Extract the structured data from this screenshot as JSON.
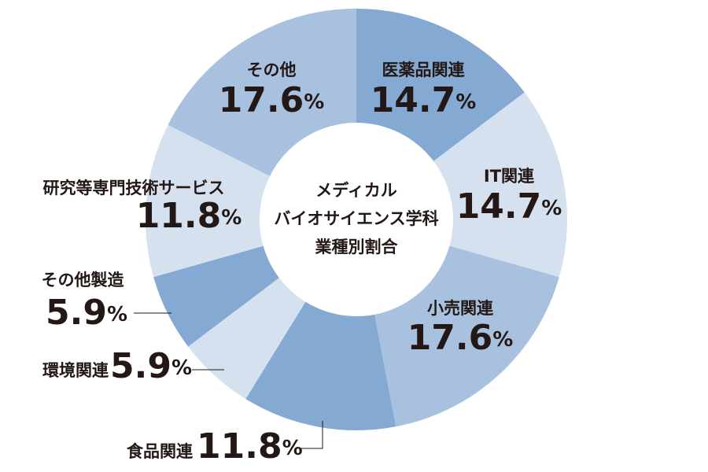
{
  "chart_data": {
    "type": "pie",
    "donut": true,
    "title": [
      "メディカル",
      "バイオサイエンス学科",
      "業種別割合"
    ],
    "categories": [
      "医薬品関連",
      "IT関連",
      "小売関連",
      "食品関連",
      "環境関連",
      "その他製造",
      "研究等専門技術サービス",
      "その他"
    ],
    "values": [
      14.7,
      14.7,
      17.6,
      11.8,
      5.9,
      5.9,
      11.8,
      17.6
    ],
    "value_labels": [
      "14.7%",
      "14.7%",
      "17.6%",
      "11.8%",
      "5.9%",
      "5.9%",
      "11.8%",
      "17.6%"
    ],
    "colors": [
      "#84a9d3",
      "#d6e1ef",
      "#a8c1df",
      "#84a9d3",
      "#d6e1ef",
      "#84a9d3",
      "#d6e1ef",
      "#a8c1df"
    ]
  }
}
